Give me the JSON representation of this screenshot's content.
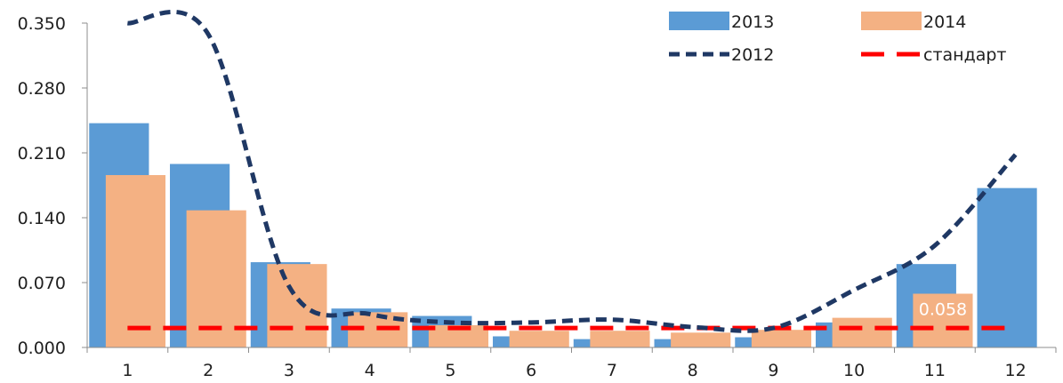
{
  "chart_data": {
    "type": "bar",
    "categories": [
      "1",
      "2",
      "3",
      "4",
      "5",
      "6",
      "7",
      "8",
      "9",
      "10",
      "11",
      "12"
    ],
    "ylim": [
      0,
      0.35
    ],
    "yticks": [
      "0.000",
      "0.070",
      "0.140",
      "0.210",
      "0.280",
      "0.350"
    ],
    "grid": false,
    "legend_position": "top-right",
    "series": [
      {
        "name": "2013",
        "kind": "bar",
        "color": "#5b9bd5",
        "values": [
          0.242,
          0.198,
          0.092,
          0.042,
          0.034,
          0.012,
          0.009,
          0.009,
          0.011,
          0.027,
          0.09,
          0.172
        ]
      },
      {
        "name": "2014",
        "kind": "bar",
        "color": "#f4b183",
        "values": [
          0.186,
          0.148,
          0.09,
          0.038,
          0.024,
          0.018,
          0.018,
          0.016,
          0.019,
          0.032,
          0.058,
          null
        ]
      },
      {
        "name": "2012",
        "kind": "line",
        "style": "dashed",
        "color": "#1f3864",
        "values": [
          0.35,
          0.338,
          0.066,
          0.036,
          0.027,
          0.027,
          0.03,
          0.022,
          0.021,
          0.062,
          0.11,
          0.208
        ]
      },
      {
        "name": "стандарт",
        "kind": "line",
        "style": "dashed",
        "color": "#ff0000",
        "values": [
          0.021,
          0.021,
          0.021,
          0.021,
          0.021,
          0.021,
          0.021,
          0.021,
          0.021,
          0.021,
          0.021,
          0.021
        ]
      }
    ],
    "annotations": [
      {
        "series": "2014",
        "category": "11",
        "text": "0.058"
      }
    ]
  }
}
